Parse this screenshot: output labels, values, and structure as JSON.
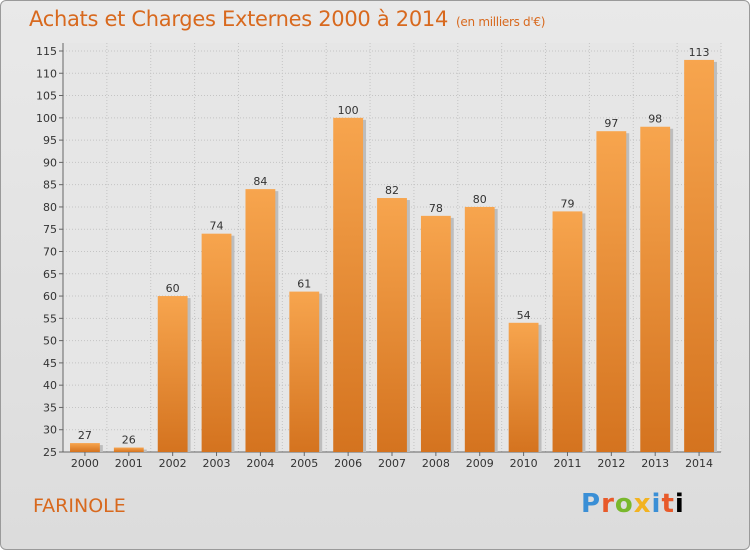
{
  "header": {
    "title": "Achats et Charges Externes 2000 à 2014",
    "subtitle": "(en milliers d'€)"
  },
  "footer": {
    "name": "FARINOLE",
    "logo_letters": [
      "P",
      "r",
      "o",
      "x",
      "i",
      "t",
      "i"
    ]
  },
  "colors": {
    "accent": "#d8691e",
    "bar_top": "#f7a54e",
    "bar_bottom": "#d4731f",
    "background": "#e3e3e3"
  },
  "chart_data": {
    "type": "bar",
    "title": "Achats et Charges Externes 2000 à 2014",
    "subtitle": "(en milliers d'€)",
    "xlabel": "",
    "ylabel": "",
    "categories": [
      "2000",
      "2001",
      "2002",
      "2003",
      "2004",
      "2005",
      "2006",
      "2007",
      "2008",
      "2009",
      "2010",
      "2011",
      "2012",
      "2013",
      "2014"
    ],
    "values": [
      27,
      26,
      60,
      74,
      84,
      61,
      100,
      82,
      78,
      80,
      54,
      79,
      97,
      98,
      113
    ],
    "ylim": [
      25,
      115
    ],
    "yticks": [
      25,
      30,
      35,
      40,
      45,
      50,
      55,
      60,
      65,
      70,
      75,
      80,
      85,
      90,
      95,
      100,
      105,
      110,
      115
    ],
    "grid": true,
    "legend": "none"
  }
}
